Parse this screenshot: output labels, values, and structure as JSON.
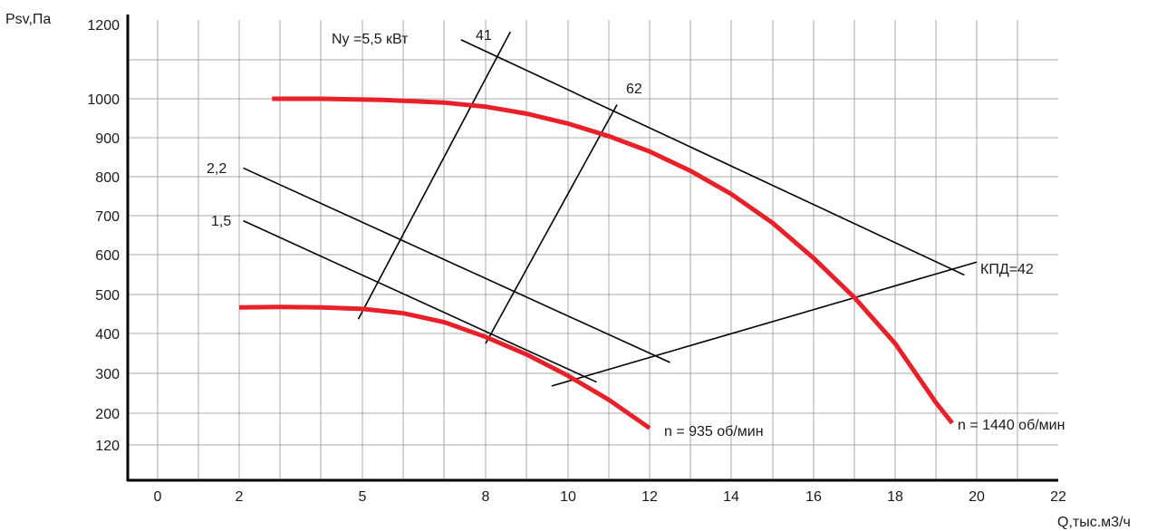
{
  "chart_data": {
    "type": "line",
    "title": "",
    "xlabel": "Q,тыс.м3/ч",
    "ylabel": "Psv,Па",
    "xlim": [
      -1,
      22
    ],
    "ylim": [
      40,
      1200
    ],
    "x_ticks": [
      0,
      2,
      5,
      8,
      10,
      12,
      14,
      16,
      18,
      20,
      22
    ],
    "x_tick_labels": [
      "0",
      "2",
      "5",
      "8",
      "10",
      "12",
      "14",
      "16",
      "18",
      "20",
      "22"
    ],
    "y_ticks": [
      120,
      200,
      300,
      400,
      500,
      600,
      700,
      800,
      900,
      1000,
      1200
    ],
    "y_tick_labels": [
      "120",
      "200",
      "300",
      "400",
      "500",
      "600",
      "700",
      "800",
      "900",
      "1000",
      "1200"
    ],
    "grid": true,
    "series": [
      {
        "name": "n = 1440 об/мин",
        "color": "#e8202a",
        "points": [
          [
            2.8,
            1000
          ],
          [
            4,
            1000
          ],
          [
            5.5,
            997
          ],
          [
            7,
            990
          ],
          [
            8,
            980
          ],
          [
            9,
            962
          ],
          [
            10,
            937
          ],
          [
            11,
            905
          ],
          [
            12,
            866
          ],
          [
            13,
            817
          ],
          [
            14,
            758
          ],
          [
            15,
            685
          ],
          [
            16,
            595
          ],
          [
            17,
            495
          ],
          [
            18,
            378
          ],
          [
            19,
            228
          ],
          [
            19.4,
            176
          ]
        ]
      },
      {
        "name": "n = 935 об/мин",
        "color": "#e8202a",
        "points": [
          [
            2,
            470
          ],
          [
            3,
            471
          ],
          [
            4,
            470
          ],
          [
            5,
            466
          ],
          [
            6,
            455
          ],
          [
            7,
            432
          ],
          [
            8,
            395
          ],
          [
            9,
            350
          ],
          [
            10,
            296
          ],
          [
            11,
            235
          ],
          [
            12,
            163
          ]
        ]
      }
    ],
    "reference_lines": [
      {
        "label": "Ny =5,5 кВт",
        "from": [
          7.4,
          1150
        ],
        "to": [
          19.7,
          552
        ]
      },
      {
        "label": "2,2",
        "from": [
          2.1,
          824
        ],
        "to": [
          12.5,
          330
        ]
      },
      {
        "label": "1,5",
        "from": [
          2.1,
          690
        ],
        "to": [
          10.7,
          280
        ]
      },
      {
        "label": "41",
        "from": [
          4.9,
          440
        ],
        "to": [
          8.6,
          1170
        ]
      },
      {
        "label": "62",
        "from": [
          8,
          378
        ],
        "to": [
          11.2,
          985
        ]
      },
      {
        "label": "КПД=42",
        "from": [
          9.6,
          270
        ],
        "to": [
          20,
          585
        ]
      }
    ],
    "annotations": [
      "n = 935 об/мин",
      "n = 1440 об/мин",
      "КПД=42",
      "Ny =5,5 кВт",
      "41",
      "62",
      "2,2",
      "1,5"
    ]
  }
}
